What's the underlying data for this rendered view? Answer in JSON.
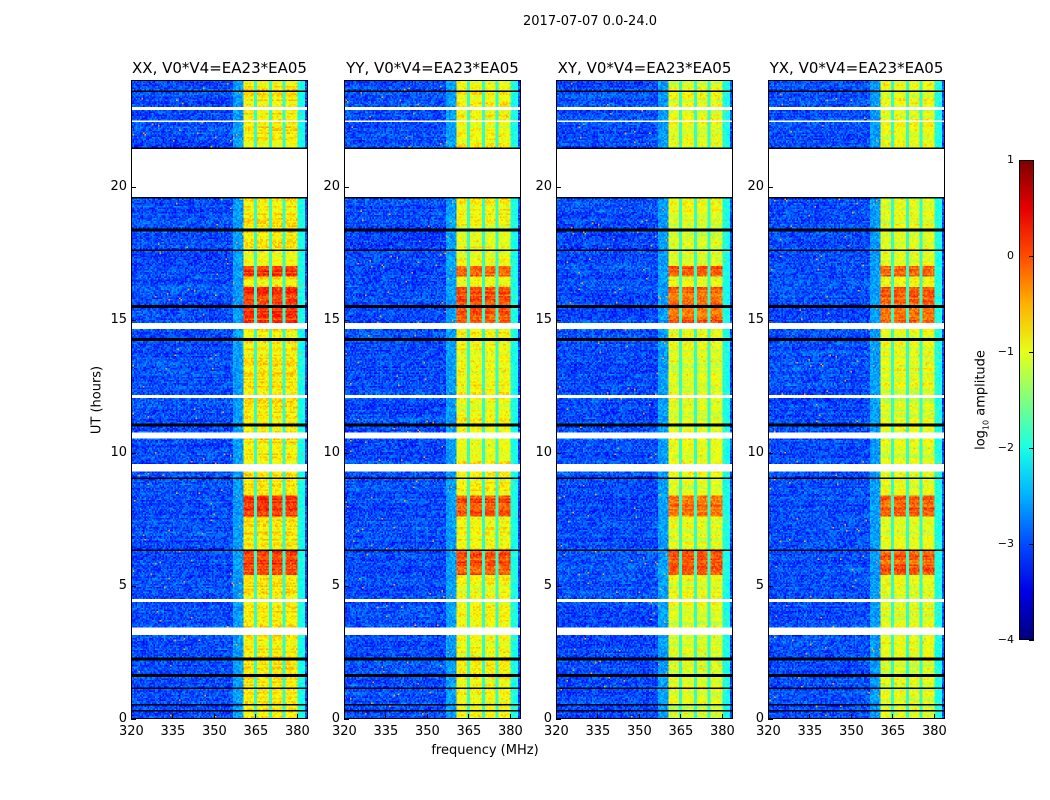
{
  "figure": {
    "suptitle": "2017-07-07 0.0-24.0"
  },
  "chart_data": {
    "type": "heatmap",
    "title": "2017-07-07 0.0-24.0",
    "xlabel": "frequency (MHz)",
    "ylabel": "UT (hours)",
    "xlim": [
      320,
      384
    ],
    "ylim": [
      0,
      24
    ],
    "xticks": [
      "320",
      "335",
      "350",
      "365",
      "380"
    ],
    "xtick_values": [
      320,
      335,
      350,
      365,
      380
    ],
    "yticks": [
      "0",
      "5",
      "10",
      "15",
      "20"
    ],
    "ytick_values": [
      0,
      5,
      10,
      15,
      20
    ],
    "panels": [
      {
        "title": "XX, V0*V4=EA23*EA05",
        "band_level": -0.8
      },
      {
        "title": "YY, V0*V4=EA23*EA05",
        "band_level": -0.9
      },
      {
        "title": "XY, V0*V4=EA23*EA05",
        "band_level": -1.0
      },
      {
        "title": "YX, V0*V4=EA23*EA05",
        "band_level": -1.0
      }
    ],
    "background_level": -3.0,
    "strong_band_mhz": [
      360.5,
      380
    ],
    "band_gaps_mhz": [
      365.2,
      370.3,
      375.3
    ],
    "edge_level_above_380": -2.0,
    "bright_hours": [
      [
        5.4,
        6.3
      ],
      [
        7.6,
        8.4
      ],
      [
        14.8,
        16.2
      ],
      [
        16.6,
        17.0
      ]
    ],
    "flagged_white_hours": [
      [
        19.6,
        21.4
      ],
      [
        14.65,
        14.85
      ],
      [
        10.55,
        10.75
      ],
      [
        9.3,
        9.6
      ],
      [
        3.15,
        3.45
      ],
      [
        4.4,
        4.5
      ],
      [
        12.05,
        12.15
      ],
      [
        22.4,
        22.5
      ],
      [
        22.9,
        23.0
      ]
    ],
    "flagged_black_hours": [
      [
        19.55,
        19.62
      ],
      [
        23.55,
        23.62
      ],
      [
        21.4,
        21.47
      ],
      [
        18.3,
        18.4
      ],
      [
        17.6,
        17.65
      ],
      [
        15.45,
        15.55
      ],
      [
        14.2,
        14.3
      ],
      [
        11.0,
        11.08
      ],
      [
        9.0,
        9.05
      ],
      [
        6.3,
        6.38
      ],
      [
        2.2,
        2.3
      ],
      [
        1.6,
        1.7
      ],
      [
        1.1,
        1.2
      ],
      [
        0.5,
        0.55
      ],
      [
        0.3,
        0.35
      ]
    ],
    "colorbar": {
      "label_prefix": "log",
      "label_sub": "10",
      "label_suffix": " amplitude",
      "range": [
        -4,
        1
      ],
      "ticks": [
        "1",
        "0",
        "−1",
        "−2",
        "−3",
        "−4"
      ],
      "tick_values": [
        1,
        0,
        -1,
        -2,
        -3,
        -4
      ],
      "colormap": "jet"
    }
  }
}
